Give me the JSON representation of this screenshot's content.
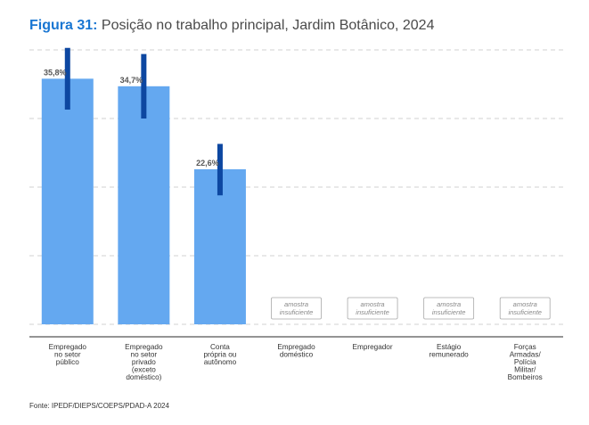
{
  "title": {
    "label": "Figura 31:",
    "text": "Posição no trabalho principal, Jardim Botânico, 2024"
  },
  "source": "Fonte: IPEDF/DIEPS/COEPS/PDAD-A 2024",
  "colors": {
    "bar": "#64a8f0",
    "error_bar": "#0d47a1",
    "title_label": "#1976d2",
    "grid": "#d0d0d0",
    "axis": "#555555",
    "text": "#333333"
  },
  "chart_data": {
    "type": "bar",
    "title": "Posição no trabalho principal, Jardim Botânico, 2024",
    "xlabel": "",
    "ylabel": "",
    "ylim": [
      0,
      40
    ],
    "grid": true,
    "categories": [
      [
        "Empregado",
        "no setor",
        "público"
      ],
      [
        "Empregado",
        "no setor",
        "privado",
        "(exceto",
        "doméstico)"
      ],
      [
        "Conta",
        "própria ou",
        "autônomo"
      ],
      [
        "Empregado",
        "doméstico"
      ],
      [
        "Empregador"
      ],
      [
        "Estágio",
        "remunerado"
      ],
      [
        "Forças",
        "Armadas/",
        "Polícia",
        "Militar/",
        "Bombeiros"
      ]
    ],
    "values": [
      35.8,
      34.7,
      22.6,
      null,
      null,
      null,
      null
    ],
    "ci_low": [
      31.3,
      30.0,
      18.8,
      null,
      null,
      null,
      null
    ],
    "ci_high": [
      40.3,
      39.4,
      26.3,
      null,
      null,
      null,
      null
    ],
    "data_labels": [
      "35,8%",
      "34,7%",
      "22,6%",
      "",
      "",
      "",
      ""
    ],
    "insufficient_label": [
      "amostra",
      "insuficiente"
    ]
  }
}
